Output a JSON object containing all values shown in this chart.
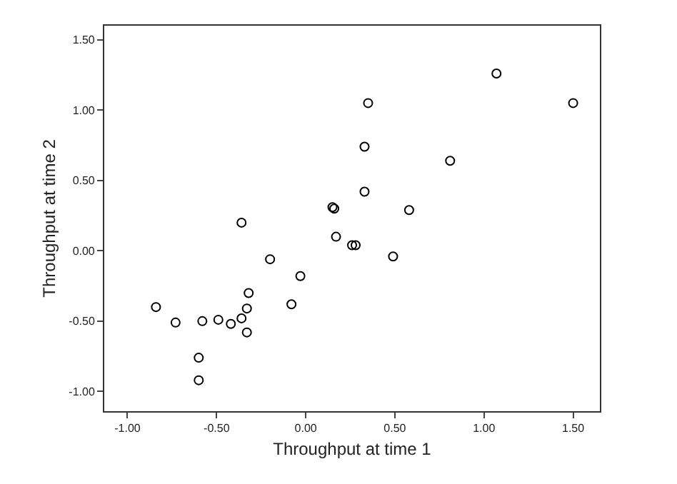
{
  "chart_data": {
    "type": "scatter",
    "xlabel": "Throughput at time 1",
    "ylabel": "Throughput at time 2",
    "x": [
      1.07,
      1.5,
      0.35,
      0.33,
      0.81,
      0.33,
      0.15,
      0.16,
      0.58,
      0.17,
      0.26,
      0.28,
      0.49,
      -0.03,
      -0.08,
      -0.36,
      -0.2,
      -0.84,
      -0.73,
      -0.58,
      -0.49,
      -0.42,
      -0.36,
      -0.33,
      -0.32,
      -0.33,
      -0.6,
      -0.6
    ],
    "values": [
      1.26,
      1.05,
      1.05,
      0.74,
      0.64,
      0.42,
      0.31,
      0.3,
      0.29,
      0.1,
      0.04,
      0.04,
      -0.04,
      -0.18,
      -0.38,
      0.2,
      -0.06,
      -0.4,
      -0.51,
      -0.5,
      -0.49,
      -0.52,
      -0.48,
      -0.41,
      -0.3,
      -0.58,
      -0.76,
      -0.92
    ],
    "color": "#000000",
    "marker": "circle",
    "legend": false,
    "xlim": [
      -1.13,
      1.65
    ],
    "ylim": [
      -1.14,
      1.6
    ],
    "xticks": [
      {
        "value": -1,
        "label": "-1.00"
      },
      {
        "value": -0.5,
        "label": "-0.50"
      },
      {
        "value": 0,
        "label": "0.00"
      },
      {
        "value": 0.5,
        "label": "0.50"
      },
      {
        "value": 1,
        "label": "1.00"
      },
      {
        "value": 1.5,
        "label": "1.50"
      }
    ],
    "yticks": [
      {
        "value": -1,
        "label": "-1.00"
      },
      {
        "value": -0.5,
        "label": "-0.50"
      },
      {
        "value": 0,
        "label": "0.00"
      },
      {
        "value": 0.5,
        "label": "0.50"
      },
      {
        "value": 1,
        "label": "1.00"
      },
      {
        "value": 1.5,
        "label": "1.50"
      }
    ]
  }
}
